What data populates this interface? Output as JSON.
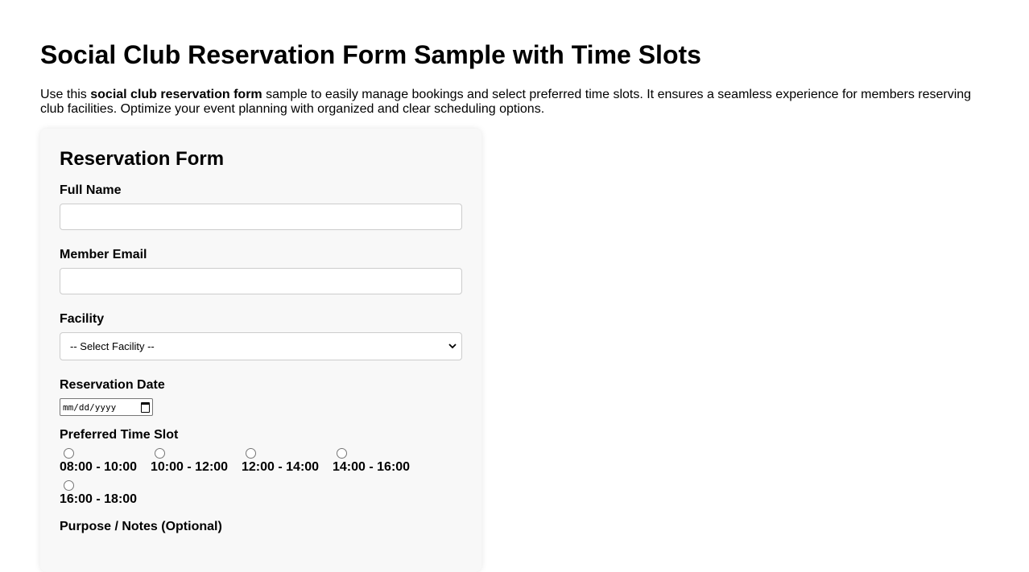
{
  "page": {
    "title": "Social Club Reservation Form Sample with Time Slots",
    "intro_prefix": "Use this ",
    "intro_bold": "social club reservation form",
    "intro_suffix": " sample to easily manage bookings and select preferred time slots. It ensures a seamless experience for members reserving club facilities. Optimize your event planning with organized and clear scheduling options."
  },
  "form": {
    "heading": "Reservation Form",
    "full_name_label": "Full Name",
    "full_name_value": "",
    "email_label": "Member Email",
    "email_value": "",
    "facility_label": "Facility",
    "facility_selected": "-- Select Facility --",
    "date_label": "Reservation Date",
    "date_placeholder": "mm/dd/yyyy",
    "time_slot_label": "Preferred Time Slot",
    "time_slots": [
      "08:00 - 10:00",
      "10:00 - 12:00",
      "12:00 - 14:00",
      "14:00 - 16:00",
      "16:00 - 18:00"
    ],
    "notes_label": "Purpose / Notes (Optional)"
  }
}
